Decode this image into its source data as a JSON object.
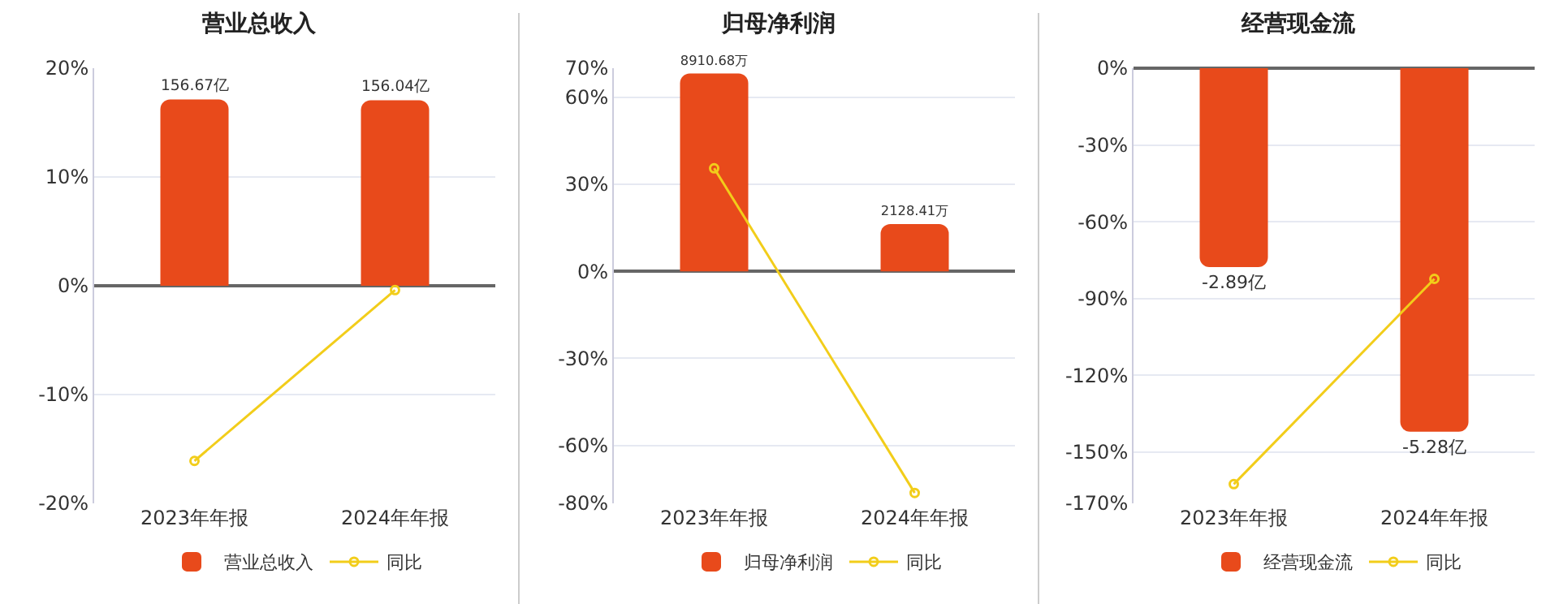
{
  "chart_data": [
    {
      "type": "bar",
      "title": "营业总收入",
      "categories": [
        "2023年年报",
        "2024年年报"
      ],
      "series": [
        {
          "name": "营业总收入",
          "color": "#e84a1b",
          "axis": "y2",
          "values": [
            156.67,
            156.04
          ],
          "value_labels": [
            "156.67亿",
            "156.04亿"
          ]
        },
        {
          "name": "同比",
          "type": "line",
          "color": "#f2cd1a",
          "values": [
            -16.1,
            -0.4
          ]
        }
      ],
      "ylim": [
        -20,
        20
      ],
      "yticks": [
        {
          "value": -20,
          "label": "-20%"
        },
        {
          "value": -10,
          "label": "-10%"
        },
        {
          "value": 0,
          "label": "0%"
        },
        {
          "value": 10,
          "label": "10%"
        },
        {
          "value": 20,
          "label": "20%"
        }
      ],
      "y2lim": [
        -183,
        183
      ],
      "grid": "y",
      "legend": "bottom",
      "marker": "circle"
    },
    {
      "type": "bar",
      "title": "归母净利润",
      "categories": [
        "2023年年报",
        "2024年年报"
      ],
      "series": [
        {
          "name": "归母净利润",
          "color": "#e84a1b",
          "axis": "y2",
          "values": [
            8910.68,
            2128.41
          ],
          "value_labels": [
            "8910.68万",
            "2128.41万"
          ]
        },
        {
          "name": "同比",
          "type": "line",
          "color": "#f2cd1a",
          "values": [
            35.5,
            -76.4
          ]
        }
      ],
      "ylim": [
        -80,
        70
      ],
      "yticks": [
        {
          "value": -80,
          "label": "-80%"
        },
        {
          "value": -60,
          "label": "-60%"
        },
        {
          "value": -30,
          "label": "-30%"
        },
        {
          "value": 0,
          "label": "0%"
        },
        {
          "value": 30,
          "label": "30%"
        },
        {
          "value": 60,
          "label": "60%"
        },
        {
          "value": 70,
          "label": "70%"
        }
      ],
      "y2lim": [
        -10452,
        9146
      ],
      "grid": "y",
      "legend": "bottom",
      "marker": "circle"
    },
    {
      "type": "bar",
      "title": "经营现金流",
      "categories": [
        "2023年年报",
        "2024年年报"
      ],
      "series": [
        {
          "name": "经营现金流",
          "color": "#e84a1b",
          "axis": "y2",
          "values": [
            -2.89,
            -5.28
          ],
          "value_labels": [
            "-2.89亿",
            "-5.28亿"
          ]
        },
        {
          "name": "同比",
          "type": "line",
          "color": "#f2cd1a",
          "values": [
            -162.5,
            -82.3
          ]
        }
      ],
      "ylim": [
        -170,
        0
      ],
      "yticks": [
        {
          "value": -170,
          "label": "-170%"
        },
        {
          "value": -150,
          "label": "-150%"
        },
        {
          "value": -120,
          "label": "-120%"
        },
        {
          "value": -90,
          "label": "-90%"
        },
        {
          "value": -60,
          "label": "-60%"
        },
        {
          "value": -30,
          "label": "-30%"
        },
        {
          "value": 0,
          "label": "0%"
        }
      ],
      "y2lim": [
        -6.32,
        0
      ],
      "grid": "y",
      "legend": "bottom",
      "marker": "circle"
    }
  ]
}
